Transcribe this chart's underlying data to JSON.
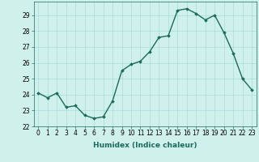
{
  "x": [
    0,
    1,
    2,
    3,
    4,
    5,
    6,
    7,
    8,
    9,
    10,
    11,
    12,
    13,
    14,
    15,
    16,
    17,
    18,
    19,
    20,
    21,
    22,
    23
  ],
  "y": [
    24.1,
    23.8,
    24.1,
    23.2,
    23.3,
    22.7,
    22.5,
    22.6,
    23.6,
    25.5,
    25.9,
    26.1,
    26.7,
    27.6,
    27.7,
    29.3,
    29.4,
    29.1,
    28.7,
    29.0,
    27.9,
    26.6,
    25.0,
    24.3
  ],
  "line_color": "#1a6b5a",
  "marker": "D",
  "marker_size": 1.8,
  "bg_color": "#d0f0ec",
  "grid_color": "#aadddd",
  "xlabel": "Humidex (Indice chaleur)",
  "ylabel": "",
  "title": "",
  "xlim": [
    -0.5,
    23.5
  ],
  "ylim": [
    22.0,
    29.85
  ],
  "yticks": [
    22,
    23,
    24,
    25,
    26,
    27,
    28,
    29
  ],
  "xticks": [
    0,
    1,
    2,
    3,
    4,
    5,
    6,
    7,
    8,
    9,
    10,
    11,
    12,
    13,
    14,
    15,
    16,
    17,
    18,
    19,
    20,
    21,
    22,
    23
  ],
  "tick_label_fontsize": 5.5,
  "xlabel_fontsize": 6.5,
  "linewidth": 1.0
}
